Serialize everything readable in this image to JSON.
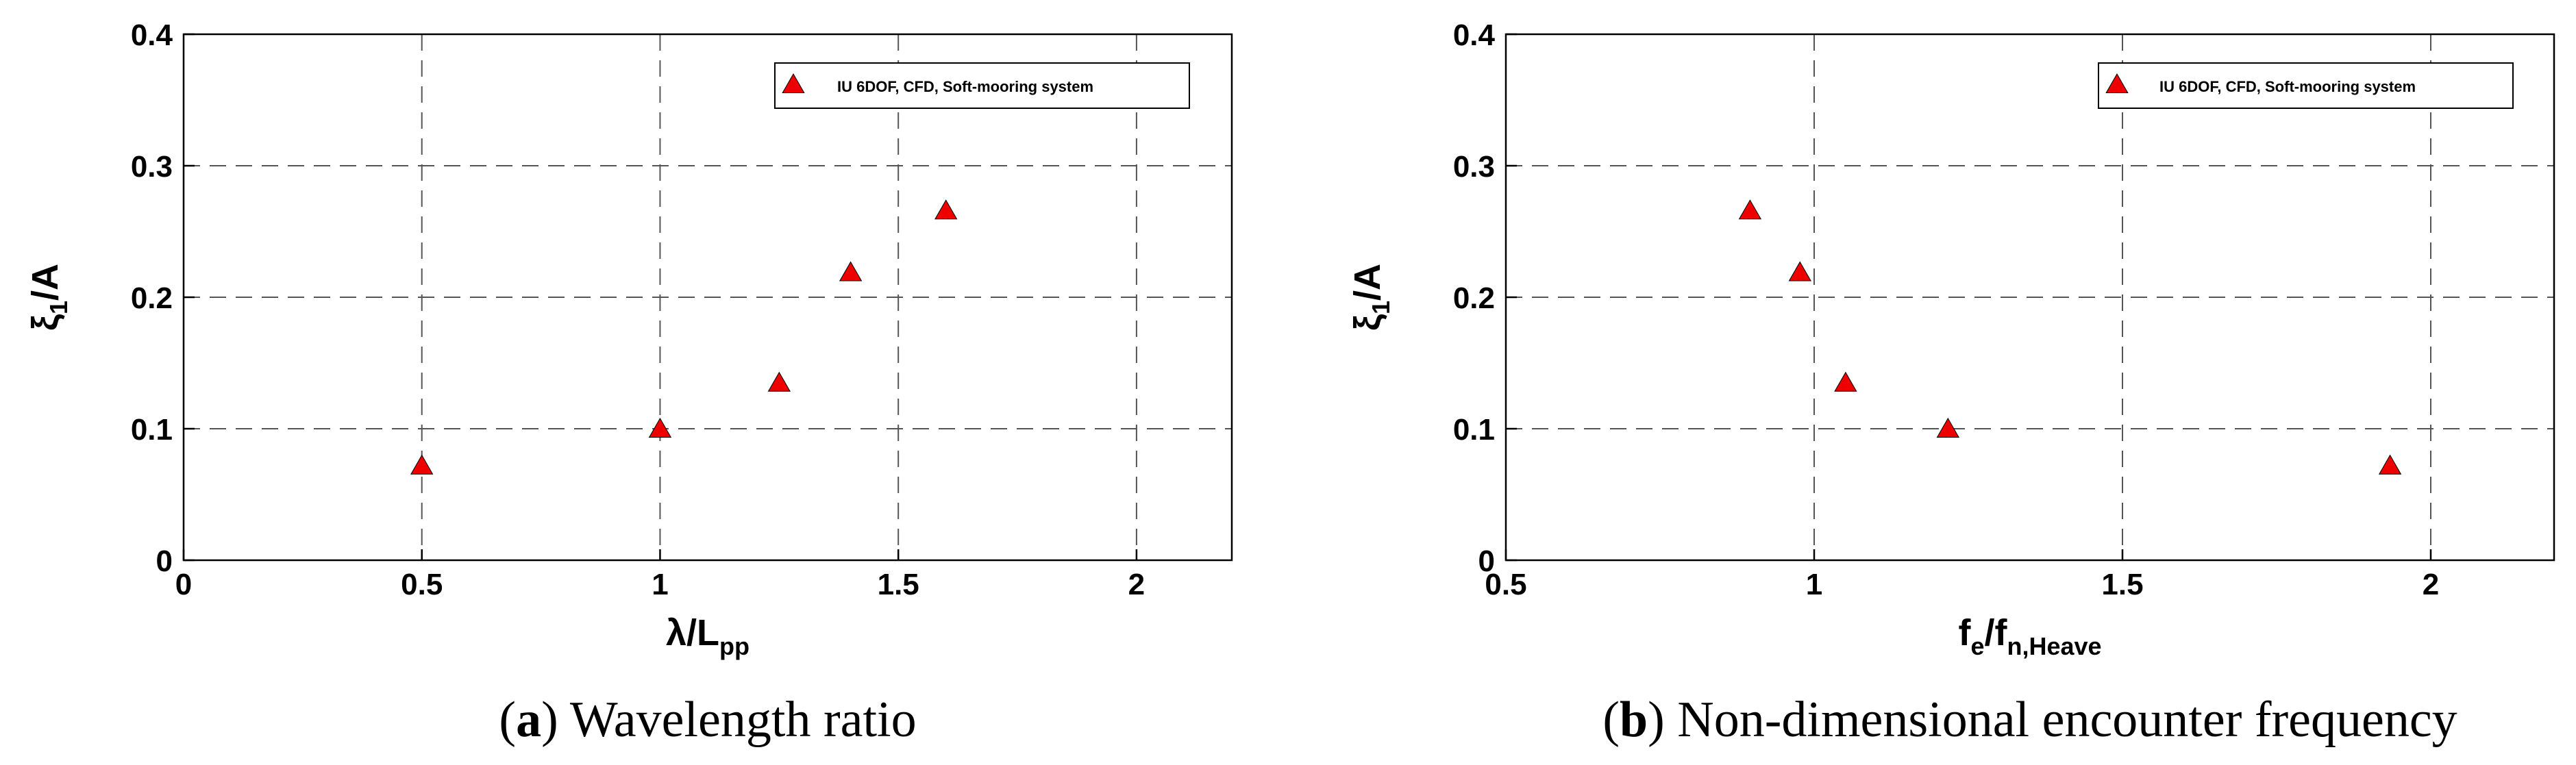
{
  "chart_data": [
    {
      "type": "scatter",
      "panel": "a",
      "caption_letter": "a",
      "caption_text": "Wavelength ratio",
      "x_label_main": "λ/L",
      "x_label_sub": "pp",
      "y_label_main": "ξ",
      "y_label_sub": "1",
      "y_label_tail": "/A",
      "xlim": [
        0,
        2.2
      ],
      "ylim": [
        0,
        0.4
      ],
      "x_ticks": [
        0,
        0.5,
        1,
        1.5,
        2
      ],
      "x_tick_labels": [
        "0",
        "0.5",
        "1",
        "1.5",
        "2"
      ],
      "y_ticks": [
        0,
        0.1,
        0.2,
        0.3,
        0.4
      ],
      "y_tick_labels": [
        "0",
        "0.1",
        "0.2",
        "0.3",
        "0.4"
      ],
      "grid": true,
      "legend_position": "top-right",
      "series": [
        {
          "name": "IU 6DOF, CFD, Soft-mooring system",
          "marker": "triangle",
          "color": "#ee0000",
          "x": [
            0.5,
            1.0,
            1.25,
            1.4,
            1.6
          ],
          "y": [
            0.071,
            0.099,
            0.134,
            0.218,
            0.265
          ]
        }
      ]
    },
    {
      "type": "scatter",
      "panel": "b",
      "caption_letter": "b",
      "caption_text": "Non-dimensional encounter frequency",
      "x_label_main": "f",
      "x_label_sub": "e",
      "x_label_mid": "/f",
      "x_label_sub2": "n,Heave",
      "y_label_main": "ξ",
      "y_label_sub": "1",
      "y_label_tail": "/A",
      "xlim": [
        0.5,
        2.2
      ],
      "ylim": [
        0,
        0.4
      ],
      "x_ticks": [
        0.5,
        1,
        1.5,
        2
      ],
      "x_tick_labels": [
        "0.5",
        "1",
        "1.5",
        "2"
      ],
      "y_ticks": [
        0,
        0.1,
        0.2,
        0.3,
        0.4
      ],
      "y_tick_labels": [
        "0",
        "0.1",
        "0.2",
        "0.3",
        "0.4"
      ],
      "grid": true,
      "legend_position": "top-right",
      "series": [
        {
          "name": "IU 6DOF, CFD, Soft-mooring system",
          "marker": "triangle",
          "color": "#ee0000",
          "x": [
            0.896,
            0.977,
            1.051,
            1.217,
            1.934
          ],
          "y": [
            0.265,
            0.218,
            0.134,
            0.099,
            0.071
          ]
        }
      ]
    }
  ]
}
